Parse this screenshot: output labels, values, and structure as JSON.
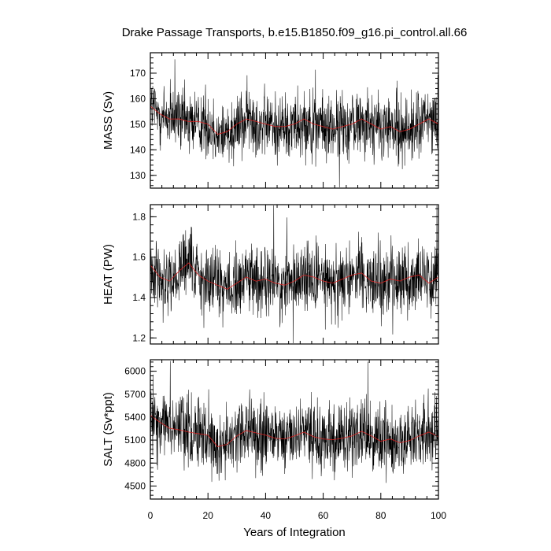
{
  "chart_data": {
    "type": "line",
    "title": "Drake Passage Transports, b.e15.B1850.f09_g16.pi_control.all.66",
    "xlabel": "Years of Integration",
    "xlim": [
      0,
      100
    ],
    "xticks": [
      0,
      20,
      40,
      60,
      80,
      100
    ],
    "xtick_labels": [
      "0",
      "20",
      "40",
      "60",
      "80",
      "100"
    ],
    "colors": {
      "raw": "#000000",
      "running_mean": "#e02020"
    },
    "panels": [
      {
        "ylabel": "MASS (Sv)",
        "ylim": [
          125,
          178
        ],
        "yticks": [
          130,
          140,
          150,
          160,
          170
        ],
        "ytick_labels": [
          "130",
          "140",
          "150",
          "160",
          "170"
        ],
        "x_start": 0,
        "x_end": 100,
        "step": 0.0833,
        "base": 150,
        "spread": 6.5,
        "mean_values": [
          157,
          154,
          152,
          152,
          151,
          151,
          150,
          146,
          147,
          150,
          152,
          151,
          150,
          149,
          149,
          150,
          152,
          150,
          149,
          148,
          149,
          150,
          152,
          150,
          148,
          149,
          147,
          148,
          150,
          152,
          150
        ]
      },
      {
        "ylabel": "HEAT (PW)",
        "ylim": [
          1.17,
          1.86
        ],
        "yticks": [
          1.2,
          1.4,
          1.6,
          1.8
        ],
        "ytick_labels": [
          "1.2",
          "1.4",
          "1.6",
          "1.8"
        ],
        "x_start": 0,
        "x_end": 100,
        "step": 0.0833,
        "base": 1.49,
        "spread": 0.085,
        "mean_values": [
          1.56,
          1.5,
          1.48,
          1.53,
          1.57,
          1.51,
          1.48,
          1.46,
          1.44,
          1.47,
          1.5,
          1.48,
          1.49,
          1.47,
          1.46,
          1.48,
          1.51,
          1.5,
          1.48,
          1.47,
          1.49,
          1.51,
          1.52,
          1.48,
          1.47,
          1.49,
          1.48,
          1.5,
          1.51,
          1.47,
          1.5
        ]
      },
      {
        "ylabel": "SALT (Sv*ppt)",
        "ylim": [
          4330,
          6150
        ],
        "yticks": [
          4500,
          4800,
          5100,
          5400,
          5700,
          6000
        ],
        "ytick_labels": [
          "4500",
          "4800",
          "5100",
          "5400",
          "5700",
          "6000"
        ],
        "x_start": 0,
        "x_end": 100,
        "step": 0.0833,
        "base": 5150,
        "spread": 230,
        "mean_values": [
          5420,
          5330,
          5250,
          5230,
          5200,
          5180,
          5160,
          5010,
          5040,
          5150,
          5220,
          5190,
          5160,
          5120,
          5110,
          5150,
          5200,
          5140,
          5110,
          5100,
          5120,
          5150,
          5210,
          5150,
          5080,
          5110,
          5060,
          5090,
          5150,
          5200,
          5140
        ]
      }
    ]
  }
}
